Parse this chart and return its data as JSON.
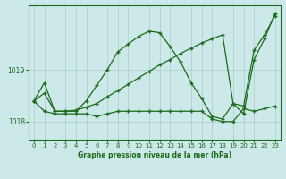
{
  "title": "Graphe pression niveau de la mer (hPa)",
  "background_color": "#cce8e8",
  "line_color": "#1a6b1a",
  "grid_color": "#aacccc",
  "xlim": [
    -0.5,
    23.5
  ],
  "ylim": [
    1017.65,
    1020.25
  ],
  "yticks": [
    1018,
    1019
  ],
  "xticks": [
    0,
    1,
    2,
    3,
    4,
    5,
    6,
    7,
    8,
    9,
    10,
    11,
    12,
    13,
    14,
    15,
    16,
    17,
    18,
    19,
    20,
    21,
    22,
    23
  ],
  "peak": [
    1018.4,
    1018.75,
    1018.2,
    1018.2,
    1018.2,
    1018.4,
    1018.7,
    1019.0,
    1019.35,
    1019.5,
    1019.65,
    1019.75,
    1019.72,
    1019.45,
    1019.15,
    1018.75,
    1018.45,
    1018.1,
    1018.05,
    1018.35,
    1018.15,
    1019.2,
    1019.6,
    1020.1
  ],
  "flat": [
    1018.4,
    1018.2,
    1018.15,
    1018.15,
    1018.15,
    1018.15,
    1018.1,
    1018.15,
    1018.2,
    1018.2,
    1018.2,
    1018.2,
    1018.2,
    1018.2,
    1018.2,
    1018.2,
    1018.2,
    1018.05,
    1018.0,
    1018.0,
    1018.25,
    1018.2,
    1018.25,
    1018.3
  ],
  "diag": [
    1018.4,
    1018.55,
    1018.2,
    1018.2,
    1018.22,
    1018.28,
    1018.35,
    1018.48,
    1018.6,
    1018.72,
    1018.85,
    1018.97,
    1019.1,
    1019.2,
    1019.32,
    1019.42,
    1019.52,
    1019.6,
    1019.68,
    1018.35,
    1018.3,
    1019.38,
    1019.68,
    1020.05
  ],
  "title_fontsize": 5.5,
  "tick_fontsize": 5
}
